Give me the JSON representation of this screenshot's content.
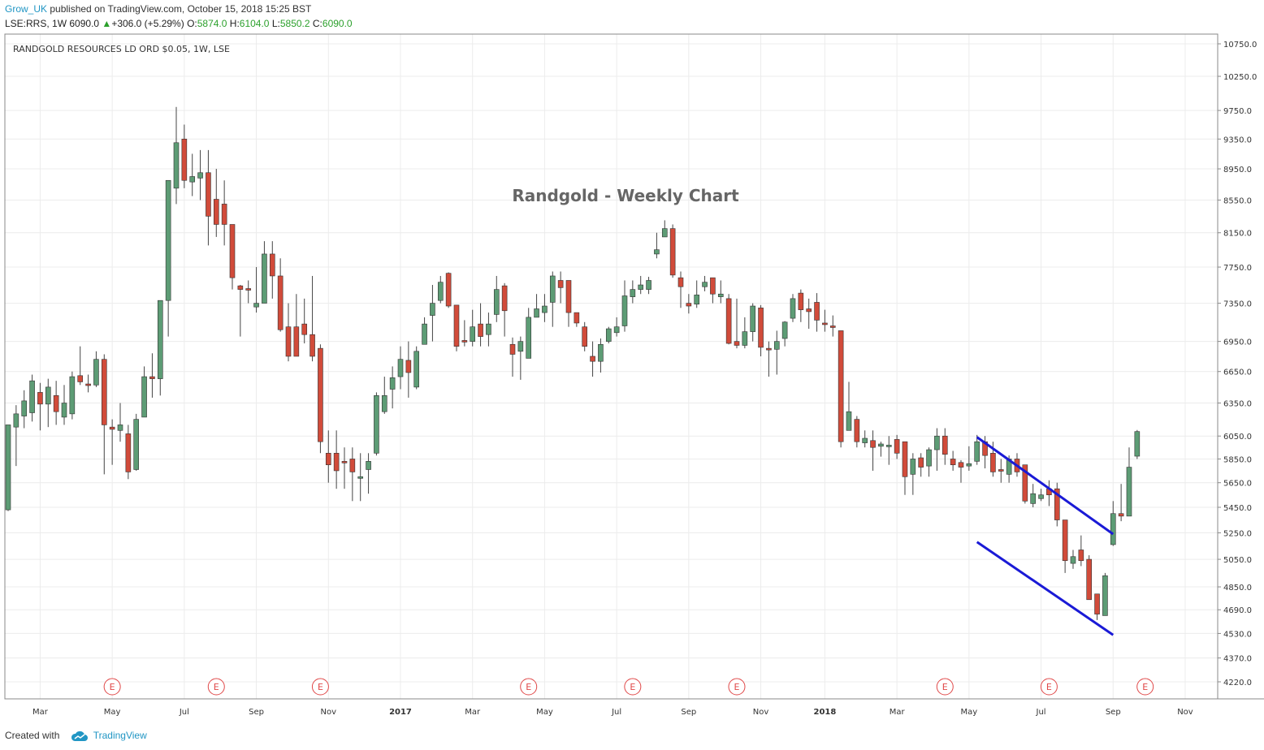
{
  "header": {
    "user": "Grow_UK",
    "published_text": "published on TradingView.com, October 15, 2018 15:25 BST",
    "symbol_line": "LSE:RRS, 1W",
    "last": "6090.0",
    "change_arrow": "▲",
    "change": "+306.0 (+5.29%)",
    "open_label": "O:",
    "open": "5874.0",
    "high_label": "H:",
    "high": "6104.0",
    "low_label": "L:",
    "low": "5850.2",
    "close_label": "C:",
    "close": "6090.0"
  },
  "footer": {
    "created_with": "Created with",
    "brand": "TradingView",
    "brand_icon": "cloud-icon"
  },
  "colors": {
    "up": "#5d9c75",
    "down": "#d14b3a",
    "wick": "#444444",
    "trendline": "#1a1ad6",
    "grid": "#ececec",
    "event": "#e04848"
  },
  "chart_data": {
    "type": "candlestick",
    "title": "Randgold - Weekly Chart",
    "instrument_label": "RANDGOLD RESOURCES LD ORD $0.05, 1W, LSE",
    "y_ticks": [
      10750.0,
      10250.0,
      9750.0,
      9350.0,
      8950.0,
      8550.0,
      8150.0,
      7750.0,
      7350.0,
      6950.0,
      6650.0,
      6350.0,
      6050.0,
      5850.0,
      5650.0,
      5450.0,
      5250.0,
      5050.0,
      4850.0,
      4690.0,
      4530.0,
      4370.0,
      4220.0
    ],
    "y_scale": "log",
    "x_ticks": [
      {
        "label": "Mar",
        "bold": false,
        "week": 4
      },
      {
        "label": "May",
        "bold": false,
        "week": 13
      },
      {
        "label": "Jul",
        "bold": false,
        "week": 22
      },
      {
        "label": "Sep",
        "bold": false,
        "week": 31
      },
      {
        "label": "Nov",
        "bold": false,
        "week": 40
      },
      {
        "label": "2017",
        "bold": true,
        "week": 49
      },
      {
        "label": "Mar",
        "bold": false,
        "week": 58
      },
      {
        "label": "May",
        "bold": false,
        "week": 67
      },
      {
        "label": "Jul",
        "bold": false,
        "week": 76
      },
      {
        "label": "Sep",
        "bold": false,
        "week": 85
      },
      {
        "label": "Nov",
        "bold": false,
        "week": 94
      },
      {
        "label": "2018",
        "bold": true,
        "week": 102
      },
      {
        "label": "Mar",
        "bold": false,
        "week": 111
      },
      {
        "label": "May",
        "bold": false,
        "week": 120
      },
      {
        "label": "Jul",
        "bold": false,
        "week": 129
      },
      {
        "label": "Sep",
        "bold": false,
        "week": 138
      },
      {
        "label": "Nov",
        "bold": false,
        "week": 147
      }
    ],
    "events": [
      {
        "label": "E",
        "week": 13
      },
      {
        "label": "E",
        "week": 26
      },
      {
        "label": "E",
        "week": 39
      },
      {
        "label": "E",
        "week": 65
      },
      {
        "label": "E",
        "week": 78
      },
      {
        "label": "E",
        "week": 91
      },
      {
        "label": "E",
        "week": 117
      },
      {
        "label": "E",
        "week": 130
      },
      {
        "label": "E",
        "week": 142
      }
    ],
    "trendlines": [
      {
        "week1": 121,
        "price1": 6040,
        "week2": 138,
        "price2": 5240
      },
      {
        "week1": 121,
        "price1": 5180,
        "week2": 138,
        "price2": 4520
      }
    ],
    "candles": [
      [
        5430,
        6150,
        5420,
        6140
      ],
      [
        6130,
        6250,
        5790,
        6330
      ],
      [
        6230,
        6370,
        6120,
        6470
      ],
      [
        6260,
        6560,
        6180,
        6620
      ],
      [
        6450,
        6340,
        6100,
        6540
      ],
      [
        6340,
        6500,
        6130,
        6580
      ],
      [
        6420,
        6270,
        6150,
        6560
      ],
      [
        6220,
        6350,
        6150,
        6520
      ],
      [
        6250,
        6600,
        6200,
        6650
      ],
      [
        6610,
        6550,
        6520,
        6900
      ],
      [
        6530,
        6520,
        6450,
        6620
      ],
      [
        6520,
        6770,
        6500,
        6850
      ],
      [
        6770,
        6150,
        5720,
        6820
      ],
      [
        6130,
        6110,
        5800,
        6200
      ],
      [
        6100,
        6150,
        6000,
        6350
      ],
      [
        6070,
        5740,
        5680,
        6150
      ],
      [
        5760,
        6200,
        5750,
        6250
      ],
      [
        6220,
        6600,
        6220,
        6700
      ],
      [
        6600,
        6580,
        6400,
        6830
      ],
      [
        6580,
        7380,
        6420,
        7380
      ],
      [
        7380,
        8800,
        7000,
        8800
      ],
      [
        8700,
        9300,
        8500,
        9800
      ],
      [
        9350,
        8800,
        8700,
        9550
      ],
      [
        8780,
        8850,
        8600,
        9150
      ],
      [
        8830,
        8900,
        8550,
        9200
      ],
      [
        8900,
        8350,
        8000,
        9200
      ],
      [
        8560,
        8250,
        8100,
        8950
      ],
      [
        8500,
        8250,
        8000,
        8800
      ],
      [
        8250,
        7630,
        7500,
        8250
      ],
      [
        7540,
        7500,
        7000,
        7550
      ],
      [
        7510,
        7500,
        7350,
        7600
      ],
      [
        7310,
        7350,
        7250,
        7750
      ],
      [
        7350,
        7900,
        7400,
        8050
      ],
      [
        7900,
        7650,
        7400,
        8050
      ],
      [
        7650,
        7070,
        7050,
        7850
      ],
      [
        7100,
        6800,
        6750,
        7350
      ],
      [
        7100,
        6800,
        6800,
        7450
      ],
      [
        7130,
        7020,
        6930,
        7400
      ],
      [
        7020,
        6800,
        6750,
        7650
      ],
      [
        6880,
        6000,
        5900,
        6920
      ],
      [
        5900,
        5800,
        5650,
        6100
      ],
      [
        5900,
        5750,
        5600,
        6100
      ],
      [
        5830,
        5820,
        5600,
        5950
      ],
      [
        5850,
        5740,
        5500,
        5950
      ],
      [
        5700,
        5700,
        5500,
        5900
      ],
      [
        5760,
        5830,
        5560,
        5900
      ],
      [
        5900,
        6420,
        5880,
        6450
      ],
      [
        6270,
        6420,
        6250,
        6600
      ],
      [
        6480,
        6590,
        6300,
        6700
      ],
      [
        6600,
        6770,
        6480,
        6900
      ],
      [
        6760,
        6640,
        6400,
        6950
      ],
      [
        6500,
        6850,
        6480,
        6900
      ],
      [
        6920,
        7130,
        6920,
        7200
      ],
      [
        7220,
        7350,
        6950,
        7550
      ],
      [
        7380,
        7580,
        7350,
        7650
      ],
      [
        7680,
        7320,
        7300,
        7690
      ],
      [
        7330,
        6900,
        6850,
        7330
      ],
      [
        6960,
        6950,
        6900,
        7170
      ],
      [
        6950,
        7100,
        6900,
        7280
      ],
      [
        7130,
        7000,
        6900,
        7350
      ],
      [
        7020,
        7130,
        6900,
        7250
      ],
      [
        7230,
        7500,
        7150,
        7650
      ],
      [
        7540,
        7270,
        7000,
        7570
      ],
      [
        6920,
        6820,
        6600,
        6990
      ],
      [
        6850,
        6950,
        6570,
        7000
      ],
      [
        6780,
        7200,
        6800,
        7300
      ],
      [
        7200,
        7290,
        7200,
        7450
      ],
      [
        7250,
        7320,
        7150,
        7450
      ],
      [
        7360,
        7650,
        7100,
        7700
      ],
      [
        7600,
        7520,
        7350,
        7700
      ],
      [
        7600,
        7250,
        7100,
        7600
      ],
      [
        7250,
        7140,
        7100,
        7200
      ],
      [
        7100,
        6900,
        6850,
        7150
      ],
      [
        6800,
        6750,
        6600,
        6950
      ],
      [
        6750,
        6920,
        6640,
        6980
      ],
      [
        6950,
        7080,
        6930,
        7100
      ],
      [
        7040,
        7100,
        7000,
        7200
      ],
      [
        7110,
        7430,
        7050,
        7600
      ],
      [
        7420,
        7500,
        7350,
        7600
      ],
      [
        7500,
        7550,
        7450,
        7650
      ],
      [
        7500,
        7600,
        7450,
        7640
      ],
      [
        7900,
        7950,
        7850,
        8150
      ],
      [
        8100,
        8200,
        8100,
        8300
      ],
      [
        8200,
        7660,
        7630,
        8250
      ],
      [
        7630,
        7530,
        7300,
        7700
      ],
      [
        7350,
        7320,
        7240,
        7450
      ],
      [
        7340,
        7440,
        7300,
        7600
      ],
      [
        7530,
        7580,
        7480,
        7650
      ],
      [
        7630,
        7450,
        7350,
        7630
      ],
      [
        7420,
        7450,
        7350,
        7600
      ],
      [
        7400,
        6930,
        6920,
        7450
      ],
      [
        6950,
        6910,
        6880,
        7400
      ],
      [
        6910,
        7050,
        6880,
        7200
      ],
      [
        7050,
        7320,
        6950,
        7350
      ],
      [
        7300,
        6890,
        6800,
        7330
      ],
      [
        6880,
        6870,
        6600,
        6950
      ],
      [
        6870,
        6950,
        6620,
        7060
      ],
      [
        6980,
        7150,
        6900,
        7160
      ],
      [
        7190,
        7400,
        7150,
        7450
      ],
      [
        7460,
        7280,
        7150,
        7500
      ],
      [
        7290,
        7260,
        7080,
        7400
      ],
      [
        7360,
        7170,
        7050,
        7460
      ],
      [
        7140,
        7130,
        7050,
        7280
      ],
      [
        7110,
        7100,
        7000,
        7220
      ],
      [
        7060,
        6000,
        5950,
        7060
      ],
      [
        6100,
        6270,
        6100,
        6550
      ],
      [
        6200,
        6000,
        5950,
        6230
      ],
      [
        5990,
        6030,
        5950,
        6100
      ],
      [
        6010,
        5950,
        5750,
        6100
      ],
      [
        5960,
        5980,
        5870,
        6000
      ],
      [
        5960,
        5970,
        5800,
        6050
      ],
      [
        6020,
        5900,
        5850,
        6060
      ],
      [
        6000,
        5700,
        5550,
        6000
      ],
      [
        5720,
        5850,
        5550,
        5900
      ],
      [
        5860,
        5780,
        5700,
        5900
      ],
      [
        5790,
        5930,
        5700,
        5950
      ],
      [
        5930,
        6050,
        5750,
        6120
      ],
      [
        6050,
        5890,
        5800,
        6120
      ],
      [
        5850,
        5800,
        5750,
        5920
      ],
      [
        5820,
        5780,
        5650,
        5840
      ],
      [
        5790,
        5810,
        5750,
        5960
      ],
      [
        5830,
        6000,
        5800,
        6060
      ],
      [
        6000,
        5880,
        5770,
        6050
      ],
      [
        5900,
        5740,
        5700,
        6000
      ],
      [
        5760,
        5750,
        5650,
        5850
      ],
      [
        5720,
        5850,
        5650,
        5880
      ],
      [
        5850,
        5740,
        5700,
        5900
      ],
      [
        5800,
        5500,
        5480,
        5800
      ],
      [
        5480,
        5560,
        5450,
        5640
      ],
      [
        5520,
        5550,
        5500,
        5600
      ],
      [
        5600,
        5550,
        5460,
        5670
      ],
      [
        5600,
        5350,
        5300,
        5650
      ],
      [
        5350,
        5040,
        4950,
        5350
      ],
      [
        5020,
        5070,
        4980,
        5120
      ],
      [
        5120,
        5040,
        5000,
        5230
      ],
      [
        5050,
        4760,
        4760,
        5080
      ],
      [
        4800,
        4660,
        4620,
        4800
      ],
      [
        4650,
        4930,
        4650,
        4950
      ],
      [
        5160,
        5400,
        5150,
        5500
      ],
      [
        5400,
        5380,
        5340,
        5640
      ],
      [
        5380,
        5780,
        5380,
        5950
      ],
      [
        5874,
        6090,
        5850,
        6104
      ]
    ]
  }
}
